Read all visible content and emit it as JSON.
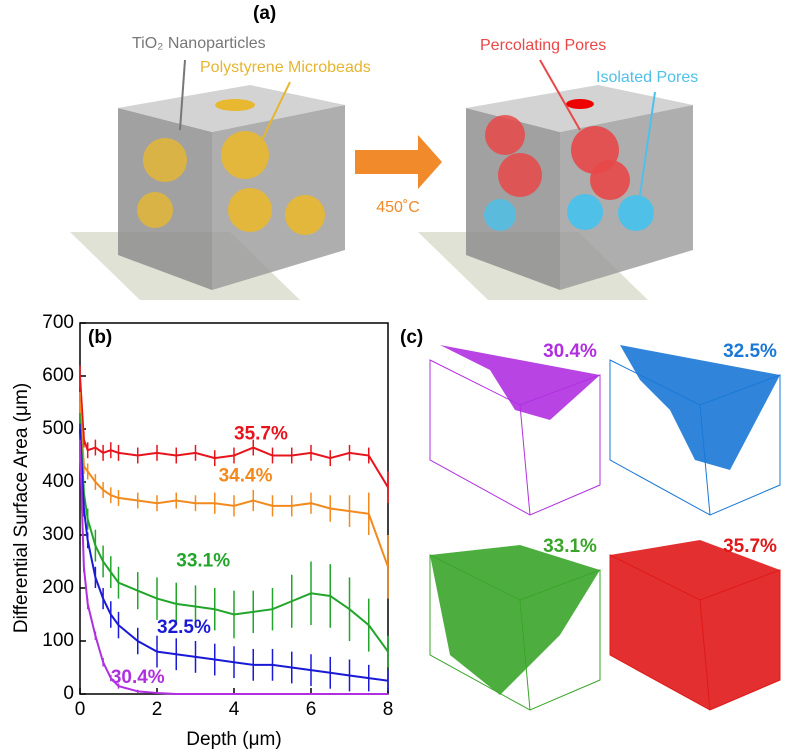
{
  "panel_a": {
    "label": "(a)",
    "nanoparticles": "TiO₂ Nanoparticles",
    "microbeads": "Polystyrene Microbeads",
    "percolating": "Percolating Pores",
    "isolated": "Isolated Pores",
    "temperature": "450˚C"
  },
  "chart_data": {
    "type": "line",
    "label": "(b)",
    "x_label": "Depth (μm)",
    "y_label": "Differential Surface Area (μm)",
    "x": [
      0,
      0.1,
      0.2,
      0.4,
      0.6,
      0.8,
      1,
      1.5,
      2,
      2.5,
      3,
      3.5,
      4,
      4.5,
      5,
      5.5,
      6,
      6.5,
      7,
      7.5,
      8
    ],
    "xlim": [
      0,
      8
    ],
    "xticks": [
      0,
      2,
      4,
      6,
      8
    ],
    "ylim": [
      0,
      700
    ],
    "yticks": [
      0,
      100,
      200,
      300,
      400,
      500,
      600,
      700
    ],
    "series": [
      {
        "name": "35.7%",
        "color": "#e8141c",
        "values": [
          600,
          480,
          460,
          465,
          455,
          460,
          455,
          450,
          455,
          450,
          455,
          445,
          450,
          465,
          450,
          450,
          455,
          445,
          455,
          450,
          390
        ],
        "errors": [
          20,
          15,
          15,
          15,
          15,
          15,
          15,
          15,
          15,
          15,
          15,
          15,
          15,
          15,
          15,
          15,
          15,
          15,
          15,
          15,
          30
        ]
      },
      {
        "name": "34.4%",
        "color": "#f28a1e",
        "values": [
          550,
          430,
          420,
          400,
          385,
          375,
          370,
          365,
          360,
          365,
          360,
          360,
          355,
          365,
          355,
          355,
          360,
          350,
          345,
          340,
          240
        ],
        "errors": [
          20,
          15,
          15,
          15,
          15,
          15,
          15,
          15,
          15,
          15,
          15,
          20,
          20,
          20,
          20,
          20,
          20,
          25,
          30,
          40,
          60
        ]
      },
      {
        "name": "33.1%",
        "color": "#22a52a",
        "values": [
          520,
          380,
          330,
          280,
          250,
          230,
          210,
          195,
          180,
          170,
          165,
          160,
          150,
          155,
          160,
          175,
          190,
          185,
          160,
          130,
          80
        ],
        "errors": [
          10,
          15,
          20,
          30,
          30,
          30,
          30,
          35,
          40,
          40,
          40,
          40,
          45,
          40,
          40,
          50,
          60,
          60,
          60,
          50,
          30
        ]
      },
      {
        "name": "32.5%",
        "color": "#1a1ad6",
        "values": [
          500,
          350,
          290,
          220,
          180,
          150,
          130,
          100,
          80,
          75,
          70,
          65,
          60,
          55,
          55,
          50,
          45,
          40,
          35,
          30,
          25
        ],
        "errors": [
          10,
          15,
          15,
          20,
          20,
          25,
          25,
          25,
          30,
          30,
          30,
          30,
          30,
          30,
          30,
          30,
          30,
          30,
          30,
          25,
          20
        ]
      },
      {
        "name": "30.4%",
        "color": "#b030e0",
        "values": [
          470,
          240,
          170,
          110,
          60,
          30,
          15,
          5,
          2,
          0,
          0,
          0,
          0,
          0,
          0,
          0,
          0,
          0,
          0,
          0,
          0
        ],
        "errors": [
          10,
          10,
          10,
          8,
          8,
          6,
          5,
          3,
          2,
          1,
          1,
          1,
          1,
          1,
          1,
          1,
          1,
          1,
          1,
          1,
          1
        ]
      }
    ]
  },
  "panel_c": {
    "label": "(c)",
    "renders": [
      {
        "label": "30.4%",
        "color": "#b030e0"
      },
      {
        "label": "32.5%",
        "color": "#1a78d6"
      },
      {
        "label": "33.1%",
        "color": "#3aa52a"
      },
      {
        "label": "35.7%",
        "color": "#e01818"
      }
    ]
  }
}
